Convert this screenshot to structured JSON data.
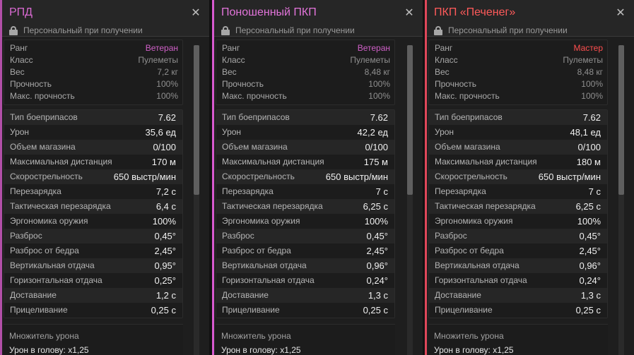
{
  "cards": [
    {
      "title": "РПД",
      "subtitle": "Персональный при получении",
      "general": [
        {
          "k": "Ранг",
          "v": "Ветеран"
        },
        {
          "k": "Класс",
          "v": "Пулеметы"
        },
        {
          "k": "Вес",
          "v": "7,2 кг"
        },
        {
          "k": "Прочность",
          "v": "100%"
        },
        {
          "k": "Макс. прочность",
          "v": "100%"
        }
      ],
      "stats": [
        {
          "k": "Тип боеприпасов",
          "v": "7.62"
        },
        {
          "k": "Урон",
          "v": "35,6 ед"
        },
        {
          "k": "Объем магазина",
          "v": "0/100"
        },
        {
          "k": "Максимальная дистанция",
          "v": "170 м"
        },
        {
          "k": "Скорострельность",
          "v": "650 выстр/мин"
        },
        {
          "k": "Перезарядка",
          "v": "7,2 с"
        },
        {
          "k": "Тактическая перезарядка",
          "v": "6,4 с"
        },
        {
          "k": "Эргономика оружия",
          "v": "100%"
        },
        {
          "k": "Разброс",
          "v": "0,45°"
        },
        {
          "k": "Разброс от бедра",
          "v": "2,45°"
        },
        {
          "k": "Вертикальная отдача",
          "v": "0,95°"
        },
        {
          "k": "Горизонтальная отдача",
          "v": "0,25°"
        },
        {
          "k": "Доставание",
          "v": "1,2 с"
        },
        {
          "k": "Прицеливание",
          "v": "0,25 с"
        }
      ],
      "mult_header": "Множитель урона",
      "mult_value": "Урон в голову: x1,25"
    },
    {
      "title": "Поношенный ПКП",
      "subtitle": "Персональный при получении",
      "general": [
        {
          "k": "Ранг",
          "v": "Ветеран"
        },
        {
          "k": "Класс",
          "v": "Пулеметы"
        },
        {
          "k": "Вес",
          "v": "8,48 кг"
        },
        {
          "k": "Прочность",
          "v": "100%"
        },
        {
          "k": "Макс. прочность",
          "v": "100%"
        }
      ],
      "stats": [
        {
          "k": "Тип боеприпасов",
          "v": "7.62"
        },
        {
          "k": "Урон",
          "v": "42,2 ед"
        },
        {
          "k": "Объем магазина",
          "v": "0/100"
        },
        {
          "k": "Максимальная дистанция",
          "v": "175 м"
        },
        {
          "k": "Скорострельность",
          "v": "650 выстр/мин"
        },
        {
          "k": "Перезарядка",
          "v": "7 с"
        },
        {
          "k": "Тактическая перезарядка",
          "v": "6,25 с"
        },
        {
          "k": "Эргономика оружия",
          "v": "100%"
        },
        {
          "k": "Разброс",
          "v": "0,45°"
        },
        {
          "k": "Разброс от бедра",
          "v": "2,45°"
        },
        {
          "k": "Вертикальная отдача",
          "v": "0,96°"
        },
        {
          "k": "Горизонтальная отдача",
          "v": "0,24°"
        },
        {
          "k": "Доставание",
          "v": "1,3 с"
        },
        {
          "k": "Прицеливание",
          "v": "0,25 с"
        }
      ],
      "mult_header": "Множитель урона",
      "mult_value": "Урон в голову: x1,25"
    },
    {
      "title": "ПКП «Печенег»",
      "subtitle": "Персональный при получении",
      "general": [
        {
          "k": "Ранг",
          "v": "Мастер"
        },
        {
          "k": "Класс",
          "v": "Пулеметы"
        },
        {
          "k": "Вес",
          "v": "8,48 кг"
        },
        {
          "k": "Прочность",
          "v": "100%"
        },
        {
          "k": "Макс. прочность",
          "v": "100%"
        }
      ],
      "stats": [
        {
          "k": "Тип боеприпасов",
          "v": "7.62"
        },
        {
          "k": "Урон",
          "v": "48,1 ед"
        },
        {
          "k": "Объем магазина",
          "v": "0/100"
        },
        {
          "k": "Максимальная дистанция",
          "v": "180 м"
        },
        {
          "k": "Скорострельность",
          "v": "650 выстр/мин"
        },
        {
          "k": "Перезарядка",
          "v": "7 с"
        },
        {
          "k": "Тактическая перезарядка",
          "v": "6,25 с"
        },
        {
          "k": "Эргономика оружия",
          "v": "100%"
        },
        {
          "k": "Разброс",
          "v": "0,45°"
        },
        {
          "k": "Разброс от бедра",
          "v": "2,45°"
        },
        {
          "k": "Вертикальная отдача",
          "v": "0,96°"
        },
        {
          "k": "Горизонтальная отдача",
          "v": "0,24°"
        },
        {
          "k": "Доставание",
          "v": "1,3 с"
        },
        {
          "k": "Прицеливание",
          "v": "0,25 с"
        }
      ],
      "mult_header": "Множитель урона",
      "mult_value": "Урон в голову: x1,25"
    }
  ],
  "close_glyph": "✕",
  "icons": {
    "lock": "lock-icon",
    "close": "close-icon"
  }
}
